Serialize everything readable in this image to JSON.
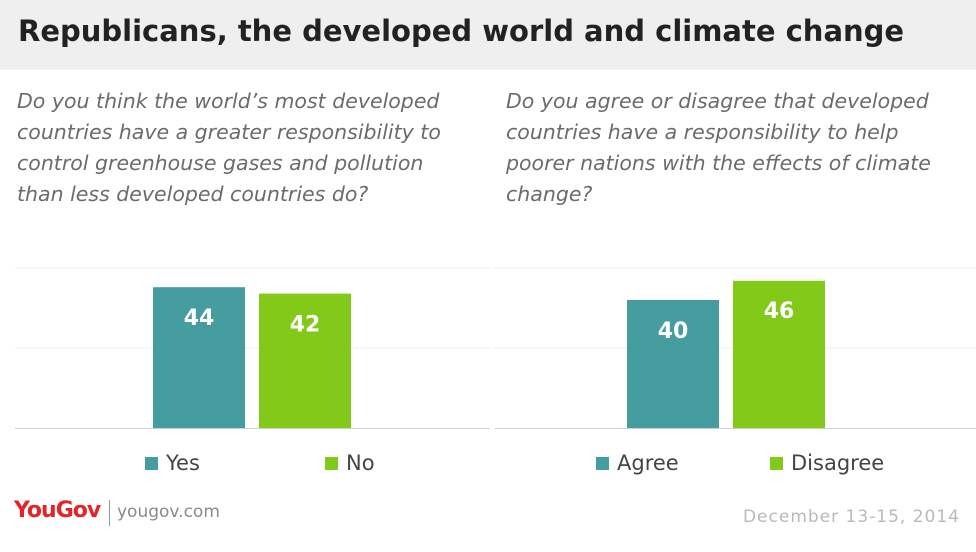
{
  "header": {
    "title": "Republicans, the developed world and climate change"
  },
  "colors": {
    "teal": "#469d9f",
    "green": "#82c91a",
    "header_bg": "#efefef",
    "brand_red": "#e3242b"
  },
  "chart_data": [
    {
      "type": "bar",
      "title": "Do you think the world’s most developed countries have a greater responsibility to control greenhouse gases and pollution than less developed countries do?",
      "categories": [
        "Yes",
        "No"
      ],
      "values": [
        44,
        42
      ],
      "ylim": [
        0,
        50
      ],
      "grid": true,
      "legend": "bottom",
      "legend_entries": [
        "Yes",
        "No"
      ]
    },
    {
      "type": "bar",
      "title": "Do you agree or disagree that developed countries have a responsibility to help poorer nations with the effects of climate change?",
      "categories": [
        "Agree",
        "Disagree"
      ],
      "values": [
        40,
        46
      ],
      "ylim": [
        0,
        50
      ],
      "grid": true,
      "legend": "bottom",
      "legend_entries": [
        "Agree",
        "Disagree"
      ]
    }
  ],
  "footer": {
    "logo": "YouGov",
    "site": "yougov.com",
    "date": "December 13-15, 2014"
  }
}
